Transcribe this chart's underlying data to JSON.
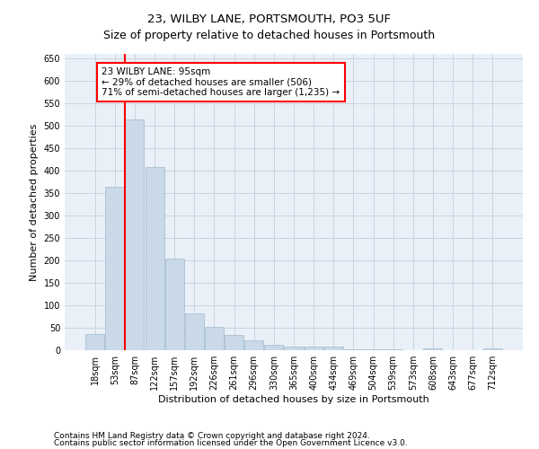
{
  "title": "23, WILBY LANE, PORTSMOUTH, PO3 5UF",
  "subtitle": "Size of property relative to detached houses in Portsmouth",
  "xlabel": "Distribution of detached houses by size in Portsmouth",
  "ylabel": "Number of detached properties",
  "footnote1": "Contains HM Land Registry data © Crown copyright and database right 2024.",
  "footnote2": "Contains public sector information licensed under the Open Government Licence v3.0.",
  "bar_labels": [
    "18sqm",
    "53sqm",
    "87sqm",
    "122sqm",
    "157sqm",
    "192sqm",
    "226sqm",
    "261sqm",
    "296sqm",
    "330sqm",
    "365sqm",
    "400sqm",
    "434sqm",
    "469sqm",
    "504sqm",
    "539sqm",
    "573sqm",
    "608sqm",
    "643sqm",
    "677sqm",
    "712sqm"
  ],
  "bar_values": [
    37,
    365,
    515,
    408,
    205,
    83,
    53,
    35,
    22,
    12,
    8,
    8,
    8,
    3,
    3,
    3,
    0,
    5,
    0,
    0,
    5
  ],
  "bar_color": "#c9d9e8",
  "bar_edge_color": "#a0b8cc",
  "vline_index": 2,
  "vline_color": "red",
  "annotation_text": "23 WILBY LANE: 95sqm\n← 29% of detached houses are smaller (506)\n71% of semi-detached houses are larger (1,235) →",
  "annotation_box_color": "white",
  "annotation_box_edge": "red",
  "ylim": [
    0,
    660
  ],
  "yticks": [
    0,
    50,
    100,
    150,
    200,
    250,
    300,
    350,
    400,
    450,
    500,
    550,
    600,
    650
  ],
  "grid_color": "#c8d4e0",
  "bg_color": "#eaf0f7",
  "title_fontsize": 9.5,
  "tick_fontsize": 7,
  "label_fontsize": 8,
  "footnote_fontsize": 6.5
}
